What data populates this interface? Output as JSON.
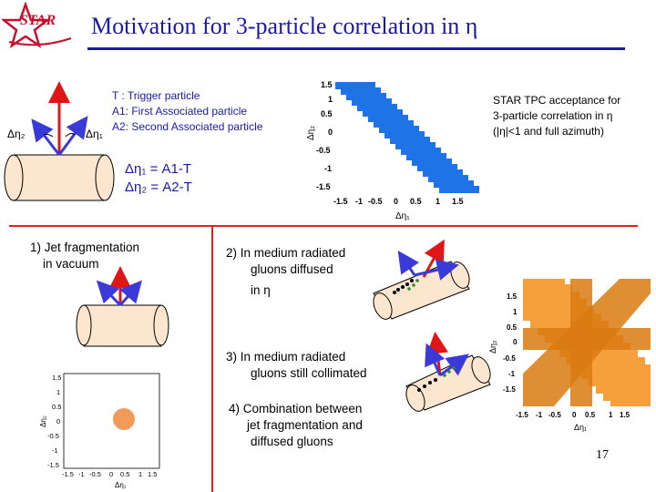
{
  "slide": {
    "title": "Motivation for 3-particle correlation in η",
    "logo_text": "STAR",
    "page_number": "17"
  },
  "legend": {
    "trigger": "T  : Trigger particle",
    "a1": "A1: First Associated particle",
    "a2": "A2: Second Associated particle"
  },
  "diagram": {
    "deta2_label": "Δη₂",
    "deta1_label": "Δη₁",
    "def1": "Δη₁ = A1-T",
    "def2": "Δη₂ = A2-T"
  },
  "acceptance_note": {
    "line1": "STAR TPC acceptance for",
    "line2": "3-particle correlation in η",
    "line3": "(|η|<1 and full azimuth)"
  },
  "cases": {
    "c1_line1": "1) Jet  fragmentation",
    "c1_line2": "in vacuum",
    "c2_line1": "2)   In medium radiated",
    "c2_line2": "gluons diffused",
    "c2_line3": "in η",
    "c3_line1": "3)   In medium radiated",
    "c3_line2": "gluons still collimated",
    "c4_line1": "4)  Combination between",
    "c4_line2": "jet fragmentation and",
    "c4_line3": "diffused gluons"
  },
  "plots": {
    "x_label": "Δη₁",
    "y_label": "Δη₂",
    "ticks_big": [
      "-1.5",
      "-1",
      "-0.5",
      "0",
      "0.5",
      "1",
      "1.5"
    ],
    "ticks_y_big": [
      "1.5",
      "1",
      "0.5",
      "0",
      "-0.5",
      "-1",
      "-1.5"
    ]
  },
  "colors": {
    "title": "#1a1aa6",
    "divider": "#dd2222",
    "acceptance_fill": "#1e74e6",
    "pad_orange": "#f5a03c",
    "band_orange": "#d97a10",
    "blob": "#f29a5a",
    "arrow_red": "#e01515",
    "arrow_blue": "#3a3ad8"
  }
}
